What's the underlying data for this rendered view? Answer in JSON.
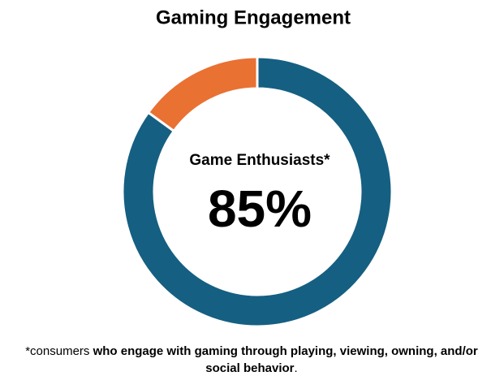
{
  "chart_data": {
    "type": "donut",
    "title": "Gaming Engagement",
    "categories": [
      "Game Enthusiasts*",
      null
    ],
    "values": [
      85,
      15
    ],
    "value_labels": [
      "85%",
      null
    ],
    "colors": [
      "#155f82",
      "#e97132"
    ],
    "footnote": [
      {
        "text": "*consumers ",
        "bold": false
      },
      {
        "text": "who engage with gaming through playing, viewing, owning, and/or social behavior",
        "bold": true
      },
      {
        "text": ".",
        "bold": false
      }
    ]
  }
}
